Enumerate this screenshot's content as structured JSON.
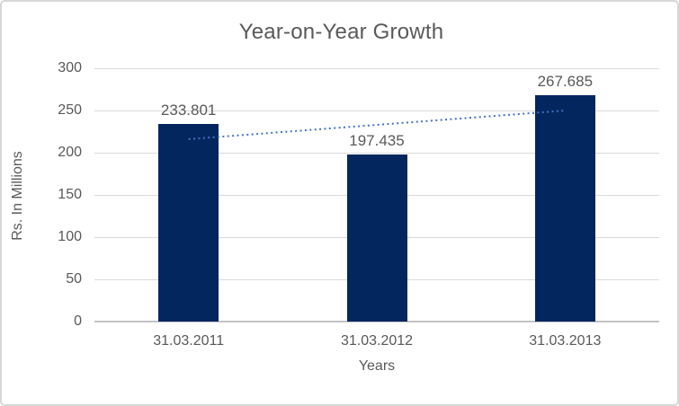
{
  "chart_data": {
    "type": "bar",
    "title": "Year-on-Year Growth",
    "xlabel": "Years",
    "ylabel": "Rs. In Millions",
    "categories": [
      "31.03.2011",
      "31.03.2012",
      "31.03.2013"
    ],
    "values": [
      233.801,
      197.435,
      267.685
    ],
    "data_labels": [
      "233.801",
      "197.435",
      "267.685"
    ],
    "ylim": [
      0,
      300
    ],
    "ytick_step": 50,
    "yticks": [
      "0",
      "50",
      "100",
      "150",
      "200",
      "250",
      "300"
    ],
    "grid": true,
    "legend": "none",
    "trendline": {
      "type": "linear",
      "style": "dotted"
    },
    "colors": {
      "bar": "#03265e",
      "trendline": "#4472c4",
      "text": "#595959",
      "gridline": "#d9d9d9",
      "axis_line": "#c3c3c3",
      "border": "#d7d7d7",
      "background": "#ffffff"
    }
  }
}
